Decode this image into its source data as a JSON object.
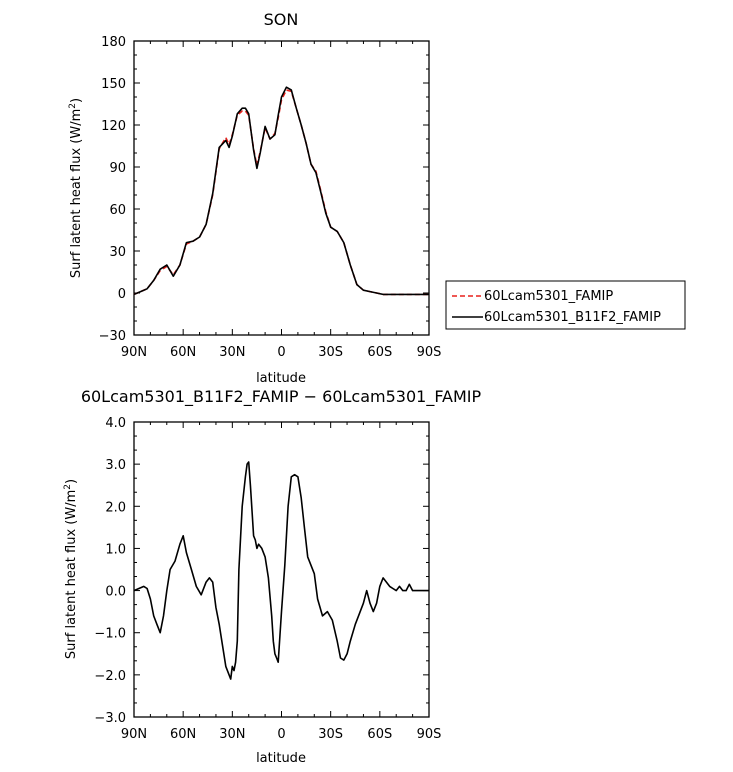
{
  "chart_data": [
    {
      "type": "line",
      "title": "SON",
      "xlabel": "latitude",
      "ylabel_main": "Surf latent heat flux (W/m",
      "ylabel_sup": "2",
      "ylabel_close": ")",
      "x_ticks": [
        {
          "v": 90,
          "label": "90N"
        },
        {
          "v": 60,
          "label": "60N"
        },
        {
          "v": 30,
          "label": "30N"
        },
        {
          "v": 0,
          "label": "0"
        },
        {
          "v": -30,
          "label": "30S"
        },
        {
          "v": -60,
          "label": "60S"
        },
        {
          "v": -90,
          "label": "90S"
        }
      ],
      "xlim": [
        90,
        -90
      ],
      "ylim": [
        -30,
        180
      ],
      "y_ticks": [
        -30,
        0,
        30,
        60,
        90,
        120,
        150,
        180
      ],
      "y_tick_labels": [
        "−30",
        "0",
        "30",
        "60",
        "90",
        "120",
        "150",
        "180"
      ],
      "legend": "right",
      "series": [
        {
          "name": "60Lcam5301_FAMIP",
          "color": "#e8201c",
          "dash": "dashed",
          "x": [
            90,
            86,
            82,
            78,
            74,
            70,
            66,
            62,
            58,
            54,
            50,
            46,
            42,
            38,
            34,
            32,
            30,
            27,
            24,
            22,
            20,
            17,
            15,
            13,
            10,
            7,
            4,
            2,
            0,
            -3,
            -6,
            -9,
            -12,
            -15,
            -18,
            -21,
            -24,
            -27,
            -30,
            -34,
            -38,
            -42,
            -46,
            -50,
            -54,
            -58,
            -62,
            -66,
            -70,
            -74,
            -78,
            -82,
            -86,
            -90
          ],
          "y": [
            -1,
            1,
            3,
            9,
            16,
            19,
            13,
            20,
            35,
            37,
            40,
            49,
            70,
            103,
            111,
            106,
            113,
            127,
            130,
            130,
            127,
            103,
            91,
            101,
            118,
            110,
            114,
            125,
            138,
            145,
            144,
            132,
            120,
            107,
            92,
            87,
            73,
            58,
            47,
            44,
            36,
            20,
            6,
            2,
            1,
            0,
            -1,
            -1,
            -1,
            -1,
            -1,
            -1,
            -1,
            -1
          ]
        },
        {
          "name": "60Lcam5301_B11F2_FAMIP",
          "color": "#000000",
          "dash": "solid",
          "x": [
            90,
            86,
            82,
            78,
            74,
            70,
            66,
            62,
            58,
            54,
            50,
            46,
            42,
            38,
            34,
            32,
            30,
            27,
            24,
            22,
            20,
            17,
            15,
            13,
            10,
            7,
            4,
            2,
            0,
            -3,
            -6,
            -9,
            -12,
            -15,
            -18,
            -21,
            -24,
            -27,
            -30,
            -34,
            -38,
            -42,
            -46,
            -50,
            -54,
            -58,
            -62,
            -66,
            -70,
            -74,
            -78,
            -82,
            -86,
            -90
          ],
          "y": [
            -1,
            1,
            3,
            9,
            17,
            20,
            12,
            20,
            36,
            37,
            40,
            49,
            71,
            104,
            109,
            104,
            112,
            128,
            132,
            132,
            128,
            102,
            89,
            100,
            119,
            110,
            113,
            127,
            140,
            147,
            145,
            132,
            120,
            107,
            92,
            86,
            72,
            57,
            47,
            44,
            36,
            20,
            6,
            2,
            1,
            0,
            -1,
            -1,
            -1,
            -1,
            -1,
            -1,
            -1,
            -1
          ]
        }
      ]
    },
    {
      "type": "line",
      "title": "60Lcam5301_B11F2_FAMIP − 60Lcam5301_FAMIP",
      "xlabel": "latitude",
      "ylabel_main": "Surf latent heat flux (W/m",
      "ylabel_sup": "2",
      "ylabel_close": ")",
      "x_ticks": [
        {
          "v": 90,
          "label": "90N"
        },
        {
          "v": 60,
          "label": "60N"
        },
        {
          "v": 30,
          "label": "30N"
        },
        {
          "v": 0,
          "label": "0"
        },
        {
          "v": -30,
          "label": "30S"
        },
        {
          "v": -60,
          "label": "60S"
        },
        {
          "v": -90,
          "label": "90S"
        }
      ],
      "xlim": [
        90,
        -90
      ],
      "ylim": [
        -3.0,
        4.0
      ],
      "y_ticks": [
        -3.0,
        -2.0,
        -1.0,
        0.0,
        1.0,
        2.0,
        3.0,
        4.0
      ],
      "y_tick_labels": [
        "−3.0",
        "−2.0",
        "−1.0",
        "0.0",
        "1.0",
        "2.0",
        "3.0",
        "4.0"
      ],
      "series": [
        {
          "name": "",
          "color": "#000000",
          "dash": "solid",
          "x": [
            90,
            87,
            84,
            82,
            80,
            78,
            76,
            74,
            72,
            70,
            68,
            65,
            62,
            60,
            58,
            55,
            52,
            49,
            46,
            44,
            42,
            40,
            38,
            36,
            34,
            32,
            31,
            30,
            29,
            28,
            27,
            26,
            24,
            22,
            21,
            20,
            19,
            18,
            17,
            16,
            15,
            14,
            12,
            10,
            8,
            6,
            5,
            4,
            3,
            2,
            0,
            -2,
            -4,
            -6,
            -8,
            -10,
            -12,
            -14,
            -16,
            -18,
            -20,
            -22,
            -25,
            -28,
            -31,
            -34,
            -36,
            -38,
            -40,
            -42,
            -45,
            -48,
            -50,
            -52,
            -54,
            -56,
            -58,
            -60,
            -62,
            -64,
            -66,
            -68,
            -70,
            -72,
            -74,
            -76,
            -78,
            -80,
            -82,
            -85,
            -90
          ],
          "y": [
            0.0,
            0.05,
            0.1,
            0.05,
            -0.2,
            -0.6,
            -0.8,
            -1.0,
            -0.6,
            0.0,
            0.5,
            0.7,
            1.1,
            1.3,
            0.9,
            0.5,
            0.1,
            -0.1,
            0.2,
            0.3,
            0.2,
            -0.4,
            -0.8,
            -1.3,
            -1.8,
            -2.0,
            -2.1,
            -1.8,
            -1.9,
            -1.7,
            -1.2,
            0.5,
            2.0,
            2.7,
            3.0,
            3.05,
            2.5,
            1.9,
            1.3,
            1.2,
            1.0,
            1.1,
            1.0,
            0.8,
            0.3,
            -0.6,
            -1.2,
            -1.5,
            -1.6,
            -1.7,
            -0.5,
            0.6,
            2.0,
            2.7,
            2.75,
            2.7,
            2.2,
            1.5,
            0.8,
            0.6,
            0.4,
            -0.2,
            -0.6,
            -0.5,
            -0.7,
            -1.2,
            -1.6,
            -1.65,
            -1.5,
            -1.2,
            -0.8,
            -0.5,
            -0.3,
            0.0,
            -0.3,
            -0.5,
            -0.3,
            0.1,
            0.3,
            0.2,
            0.1,
            0.05,
            0.0,
            0.1,
            0.0,
            0.0,
            0.15,
            0.0,
            0.0,
            0.0,
            0.0
          ]
        }
      ]
    }
  ]
}
